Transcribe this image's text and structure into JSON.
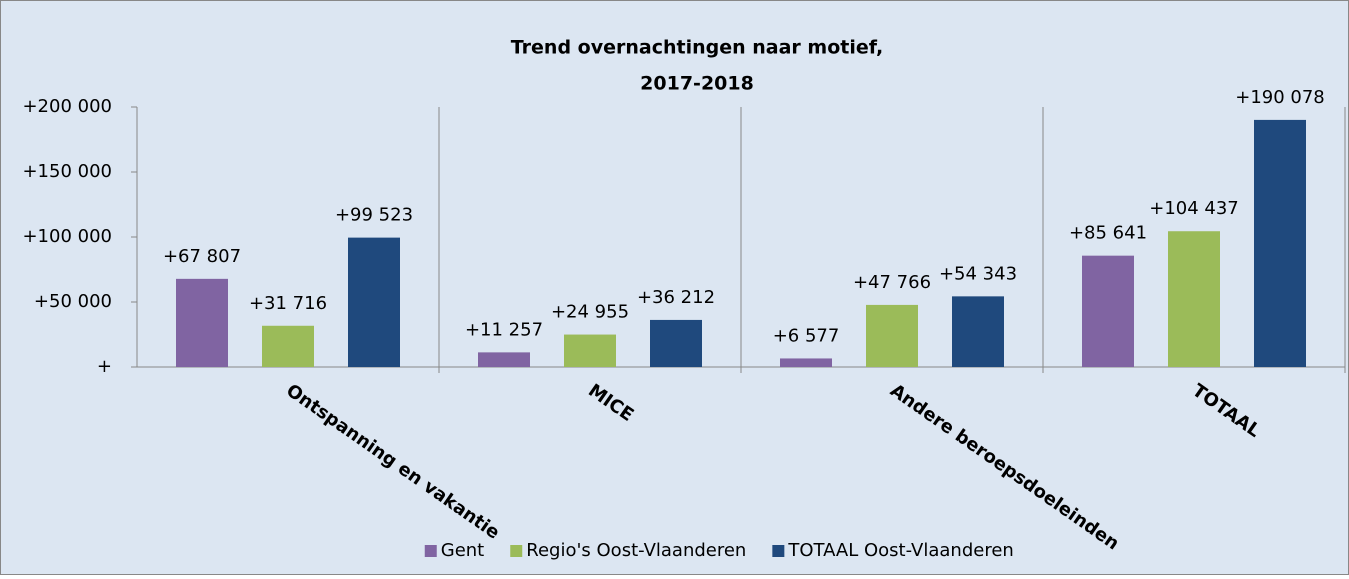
{
  "chart_data": {
    "type": "bar",
    "title": [
      "Trend overnachtingen naar motief,",
      "2017-2018"
    ],
    "categories": [
      "Ontspanning en vakantie",
      "MICE",
      "Andere beroepsdoeleinden",
      "TOTAAL"
    ],
    "series": [
      {
        "name": "Gent",
        "color": "#8064a2",
        "values": [
          67807,
          11257,
          6577,
          85641
        ],
        "value_labels": [
          "+67 807",
          "+11 257",
          "+6 577",
          "+85 641"
        ]
      },
      {
        "name": "Regio's Oost-Vlaanderen",
        "color": "#9bbb59",
        "values": [
          31716,
          24955,
          47766,
          104437
        ],
        "value_labels": [
          "+31 716",
          "+24 955",
          "+47 766",
          "+104 437"
        ]
      },
      {
        "name": "TOTAAL Oost-Vlaanderen",
        "color": "#1f497d",
        "values": [
          99523,
          36212,
          54343,
          190078
        ],
        "value_labels": [
          "+99 523",
          "+36 212",
          "+54 343",
          "+190 078"
        ]
      }
    ],
    "ylim": [
      0,
      200000
    ],
    "yticks": [
      {
        "value": 0,
        "label": "+"
      },
      {
        "value": 50000,
        "label": "+50 000"
      },
      {
        "value": 100000,
        "label": "+100 000"
      },
      {
        "value": 150000,
        "label": "+150 000"
      },
      {
        "value": 200000,
        "label": "+200 000"
      }
    ],
    "legend": "bottom"
  }
}
